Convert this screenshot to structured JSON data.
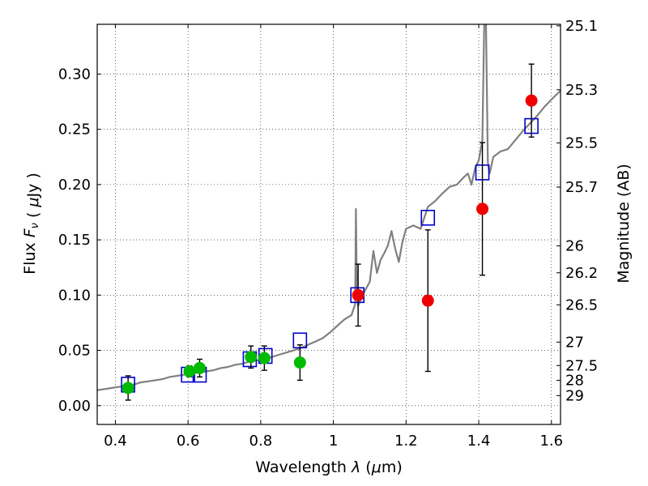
{
  "chart_data": {
    "type": "scatter",
    "xlabel": "Wavelength λ (μm)",
    "ylabel": "Flux F_ν ( μJy )",
    "y2label": "Magnitude (AB)",
    "xlim": [
      0.35,
      1.625
    ],
    "ylim": [
      -0.017,
      0.345
    ],
    "grid": true,
    "x_ticks": [
      0.4,
      0.6,
      0.8,
      1.0,
      1.2,
      1.4,
      1.6
    ],
    "x_tick_labels": [
      "0.4",
      "0.6",
      "0.8",
      "1",
      "1.2",
      "1.4",
      "1.6"
    ],
    "y_ticks": [
      0.0,
      0.05,
      0.1,
      0.15,
      0.2,
      0.25,
      0.3
    ],
    "y_tick_labels": [
      "0.00",
      "0.05",
      "0.10",
      "0.15",
      "0.20",
      "0.25",
      "0.30"
    ],
    "magnitude_ticks": [
      {
        "label": "25.1",
        "flux": 0.3436
      },
      {
        "label": "25.3",
        "flux": 0.2858
      },
      {
        "label": "25.5",
        "flux": 0.2377
      },
      {
        "label": "25.7",
        "flux": 0.1977
      },
      {
        "label": "26",
        "flux": 0.1445
      },
      {
        "label": "26.2",
        "flux": 0.1202
      },
      {
        "label": "26.5",
        "flux": 0.0912
      },
      {
        "label": "27",
        "flux": 0.0575
      },
      {
        "label": "27.5",
        "flux": 0.0363
      },
      {
        "label": "28",
        "flux": 0.0229
      },
      {
        "label": "29",
        "flux": 0.0091
      }
    ],
    "series": [
      {
        "kind": "line",
        "color": "#808080",
        "x": [
          0.35,
          0.37,
          0.39,
          0.41,
          0.43,
          0.45,
          0.47,
          0.49,
          0.51,
          0.53,
          0.55,
          0.57,
          0.59,
          0.61,
          0.63,
          0.65,
          0.67,
          0.69,
          0.71,
          0.73,
          0.75,
          0.77,
          0.79,
          0.81,
          0.83,
          0.85,
          0.87,
          0.89,
          0.91,
          0.93,
          0.95,
          0.97,
          0.99,
          1.01,
          1.03,
          1.05,
          1.06,
          1.062,
          1.064,
          1.066,
          1.068,
          1.07,
          1.08,
          1.1,
          1.11,
          1.12,
          1.13,
          1.14,
          1.15,
          1.16,
          1.17,
          1.18,
          1.19,
          1.2,
          1.22,
          1.24,
          1.26,
          1.28,
          1.3,
          1.32,
          1.34,
          1.36,
          1.37,
          1.38,
          1.39,
          1.4,
          1.41,
          1.415,
          1.42,
          1.425,
          1.43,
          1.44,
          1.46,
          1.48,
          1.5,
          1.52,
          1.54,
          1.56,
          1.58,
          1.6,
          1.625
        ],
        "y": [
          0.014,
          0.015,
          0.016,
          0.017,
          0.018,
          0.019,
          0.021,
          0.022,
          0.023,
          0.024,
          0.026,
          0.027,
          0.028,
          0.029,
          0.03,
          0.031,
          0.032,
          0.034,
          0.035,
          0.037,
          0.038,
          0.04,
          0.041,
          0.042,
          0.044,
          0.046,
          0.048,
          0.05,
          0.052,
          0.055,
          0.058,
          0.061,
          0.066,
          0.072,
          0.078,
          0.082,
          0.092,
          0.178,
          0.12,
          0.1,
          0.09,
          0.092,
          0.1,
          0.112,
          0.14,
          0.12,
          0.132,
          0.138,
          0.145,
          0.158,
          0.142,
          0.13,
          0.148,
          0.16,
          0.163,
          0.16,
          0.18,
          0.185,
          0.192,
          0.198,
          0.2,
          0.207,
          0.21,
          0.2,
          0.215,
          0.222,
          0.24,
          0.345,
          0.345,
          0.22,
          0.21,
          0.225,
          0.23,
          0.232,
          0.24,
          0.248,
          0.255,
          0.262,
          0.27,
          0.277,
          0.285
        ]
      },
      {
        "kind": "squares",
        "color": "#0000cc",
        "x": [
          0.435,
          0.6,
          0.632,
          0.77,
          0.813,
          0.908,
          1.066,
          1.26,
          1.41,
          1.545
        ],
        "y": [
          0.019,
          0.028,
          0.028,
          0.042,
          0.045,
          0.059,
          0.1,
          0.17,
          0.211,
          0.253
        ]
      },
      {
        "kind": "points",
        "color": "#00bb00",
        "x": [
          0.435,
          0.604,
          0.632,
          0.773,
          0.81,
          0.908
        ],
        "y": [
          0.016,
          0.031,
          0.034,
          0.044,
          0.043,
          0.039
        ],
        "err": [
          0.011,
          0.005,
          0.008,
          0.01,
          0.011,
          0.016
        ]
      },
      {
        "kind": "points",
        "color": "#ee0000",
        "x": [
          1.068,
          1.26,
          1.41,
          1.545
        ],
        "y": [
          0.1,
          0.095,
          0.178,
          0.276
        ],
        "err": [
          0.028,
          0.064,
          0.06,
          0.033
        ]
      }
    ]
  }
}
